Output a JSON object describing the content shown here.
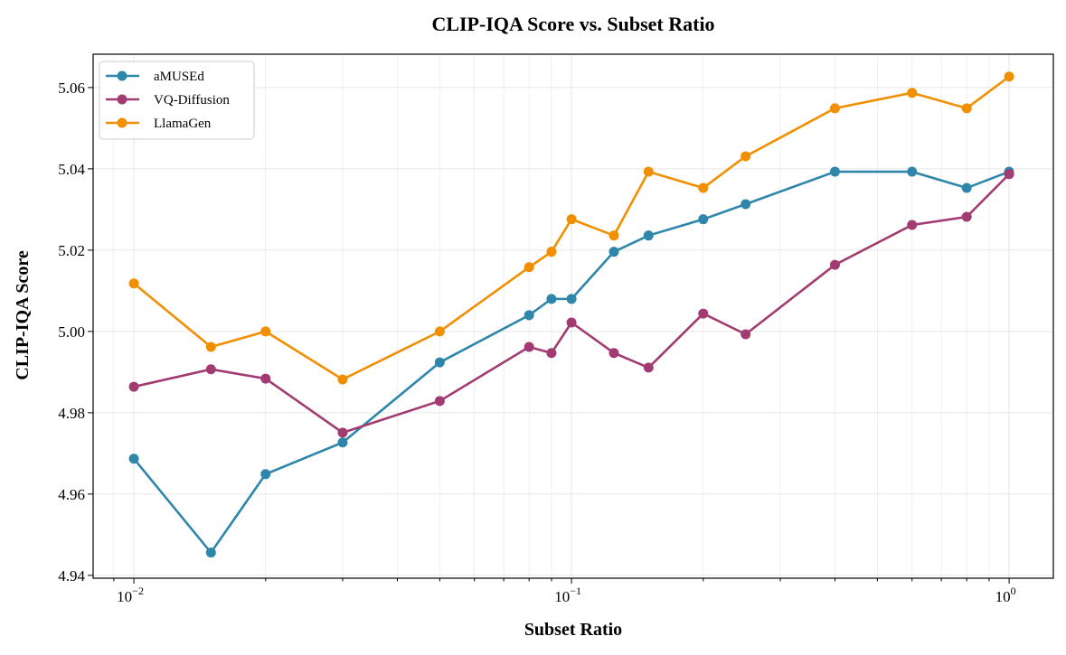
{
  "chart_data": {
    "type": "line",
    "title": "CLIP-IQA Score vs. Subset Ratio",
    "xlabel": "Subset Ratio",
    "ylabel": "CLIP-IQA Score",
    "xscale": "log",
    "xlim": [
      0.00807,
      1.262
    ],
    "ylim": [
      4.9393,
      5.0682
    ],
    "grid": true,
    "legend_position": "top-left",
    "x": [
      0.01,
      0.015,
      0.02,
      0.03,
      0.05,
      0.08,
      0.09,
      0.1,
      0.125,
      0.15,
      0.2,
      0.25,
      0.4,
      0.6,
      0.8,
      1.0
    ],
    "x_ticks": [
      {
        "base": "10",
        "exp": "−2",
        "value": 0.01
      },
      {
        "base": "10",
        "exp": "−1",
        "value": 0.1
      },
      {
        "base": "10",
        "exp": "0",
        "value": 1
      }
    ],
    "y_ticks": [
      "4.94",
      "4.96",
      "4.98",
      "5.00",
      "5.02",
      "5.04",
      "5.06"
    ],
    "series": [
      {
        "name": "aMUSEd",
        "color": "#2e86ab",
        "values": [
          4.9687,
          4.9456,
          4.9649,
          4.9727,
          4.9924,
          5.004,
          5.008,
          5.008,
          5.0196,
          5.0236,
          5.0276,
          5.0313,
          5.0393,
          5.0393,
          5.0353,
          5.0393
        ]
      },
      {
        "name": "VQ-Diffusion",
        "color": "#a23b72",
        "values": [
          4.9864,
          4.9907,
          4.9884,
          4.9751,
          4.9829,
          4.9962,
          4.9947,
          5.0022,
          4.9947,
          4.9911,
          5.0044,
          4.9993,
          5.0164,
          5.0262,
          5.0282,
          5.0387
        ]
      },
      {
        "name": "LlamaGen",
        "color": "#f18f01",
        "values": [
          5.0118,
          4.9962,
          5.0,
          4.9882,
          5.0,
          5.0158,
          5.0196,
          5.0276,
          5.0236,
          5.0393,
          5.0353,
          5.0431,
          5.0549,
          5.0587,
          5.0549,
          5.0627
        ]
      }
    ]
  }
}
